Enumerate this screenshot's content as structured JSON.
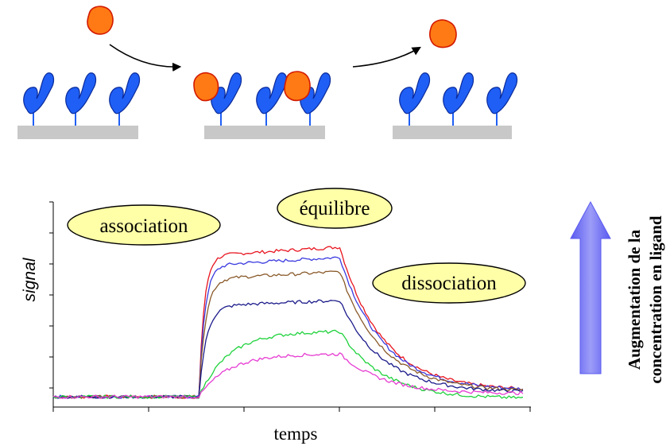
{
  "schematic": {
    "colors": {
      "receptor": "#1f5ff5",
      "ligand": "#ff7a14",
      "ligand_outline": "#d31a00",
      "surface": "#c8c8c8"
    },
    "icons": [
      "receptor-icon",
      "ligand-icon",
      "surface-icon",
      "arrow-icon"
    ]
  },
  "chart_data": {
    "type": "line",
    "title": "",
    "xlabel": "temps",
    "ylabel": "signal",
    "x_ticks_labeled": false,
    "y_ticks_labeled": false,
    "xlim": [
      0,
      100
    ],
    "ylim": [
      0,
      100
    ],
    "association_start": 31,
    "dissociation_start": 61,
    "baseline": 5,
    "annotations": [
      "association",
      "équilibre",
      "dissociation"
    ],
    "trend_arrow": {
      "color": "#7f7ff5",
      "label_line1": "Augmentation de la",
      "label_line2": "concentration en ligand"
    },
    "series": [
      {
        "color": "#e8141e",
        "plateau": 78,
        "end": 8
      },
      {
        "color": "#3a3ae0",
        "plateau": 73,
        "end": 8
      },
      {
        "color": "#8a5a2a",
        "plateau": 66,
        "end": 7.5
      },
      {
        "color": "#1a1a8a",
        "plateau": 52,
        "end": 7
      },
      {
        "color": "#1fd23c",
        "plateau": 37,
        "end": 4
      },
      {
        "color": "#e63cd2",
        "plateau": 26,
        "end": 6.5
      }
    ]
  }
}
